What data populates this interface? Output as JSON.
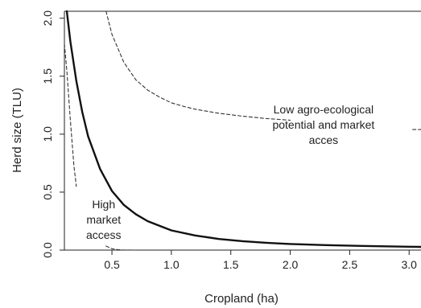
{
  "chart_data": {
    "type": "line",
    "title": "",
    "xlabel": "Cropland (ha)",
    "ylabel": "Herd size (TLU)",
    "xlim": [
      0.1,
      3.1
    ],
    "ylim": [
      0.0,
      2.06
    ],
    "xticks": [
      "0.5",
      "1.0",
      "1.5",
      "2.0",
      "2.5",
      "3.0"
    ],
    "xtick_values": [
      0.5,
      1.0,
      1.5,
      2.0,
      2.5,
      3.0
    ],
    "yticks": [
      "0.0",
      "0.5",
      "1.0",
      "1.5",
      "2.0"
    ],
    "ytick_values": [
      0.0,
      0.5,
      1.0,
      1.5,
      2.0
    ],
    "grid": false,
    "series": [
      {
        "style": "solid",
        "color": "#111111",
        "x": [
          0.12,
          0.15,
          0.2,
          0.25,
          0.3,
          0.4,
          0.5,
          0.6,
          0.7,
          0.8,
          0.9,
          1.0,
          1.2,
          1.4,
          1.6,
          1.8,
          2.0,
          2.3,
          2.6,
          3.0,
          3.1
        ],
        "y": [
          2.06,
          1.8,
          1.46,
          1.19,
          0.98,
          0.7,
          0.51,
          0.39,
          0.31,
          0.25,
          0.21,
          0.17,
          0.126,
          0.096,
          0.077,
          0.063,
          0.053,
          0.043,
          0.036,
          0.029,
          0.028
        ]
      },
      {
        "style": "dashed",
        "color": "#333333",
        "x": [
          0.45,
          0.5,
          0.6,
          0.7,
          0.8,
          0.9,
          1.0,
          1.1,
          1.2,
          1.4,
          1.6,
          1.8,
          2.0
        ],
        "y": [
          2.06,
          1.86,
          1.62,
          1.47,
          1.38,
          1.32,
          1.27,
          1.24,
          1.215,
          1.18,
          1.155,
          1.135,
          1.12
        ]
      },
      {
        "style": "dashed",
        "color": "#333333",
        "x": [
          3.03,
          3.1
        ],
        "y": [
          1.04,
          1.04
        ]
      },
      {
        "style": "dashed",
        "color": "#333333",
        "x": [
          0.1,
          0.12,
          0.15,
          0.18,
          0.2
        ],
        "y": [
          1.78,
          1.55,
          1.12,
          0.73,
          0.55
        ]
      },
      {
        "style": "dashed",
        "color": "#333333",
        "x": [
          0.45,
          0.5,
          0.55,
          0.6,
          0.7
        ],
        "y": [
          0.035,
          0.012,
          0.004,
          0.001,
          0.0
        ]
      }
    ],
    "annotations": [
      {
        "lines": [
          "Low agro-ecological",
          "potential and market",
          "acces"
        ],
        "x": 2.28,
        "y": 1.18
      },
      {
        "lines": [
          "High",
          "market",
          "access"
        ],
        "x": 0.43,
        "y": 0.36
      }
    ]
  }
}
